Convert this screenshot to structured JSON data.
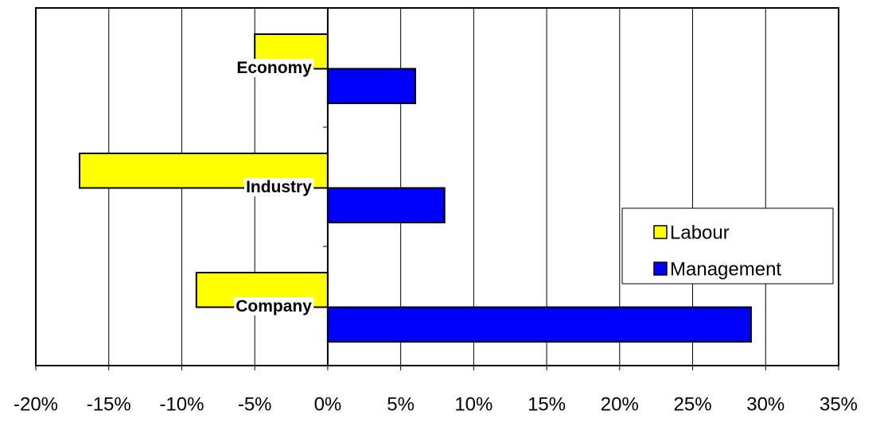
{
  "chart_data": {
    "type": "hbar",
    "categories": [
      "Economy",
      "Industry",
      "Company"
    ],
    "series": [
      {
        "name": "Labour",
        "color": "#ffff00",
        "values": [
          -5,
          -17,
          -9
        ]
      },
      {
        "name": "Management",
        "color": "#0000ff",
        "values": [
          6,
          8,
          29
        ]
      }
    ],
    "xlim": [
      -20,
      35
    ],
    "xticks": [
      {
        "value": -20,
        "label": "-20%"
      },
      {
        "value": -15,
        "label": "-15%"
      },
      {
        "value": -10,
        "label": "-10%"
      },
      {
        "value": -5,
        "label": "-5%"
      },
      {
        "value": 0,
        "label": "0%"
      },
      {
        "value": 5,
        "label": "5%"
      },
      {
        "value": 10,
        "label": "10%"
      },
      {
        "value": 15,
        "label": "15%"
      },
      {
        "value": 20,
        "label": "20%"
      },
      {
        "value": 25,
        "label": "25%"
      },
      {
        "value": 30,
        "label": "30%"
      },
      {
        "value": 35,
        "label": "35%"
      }
    ],
    "grid": true
  }
}
